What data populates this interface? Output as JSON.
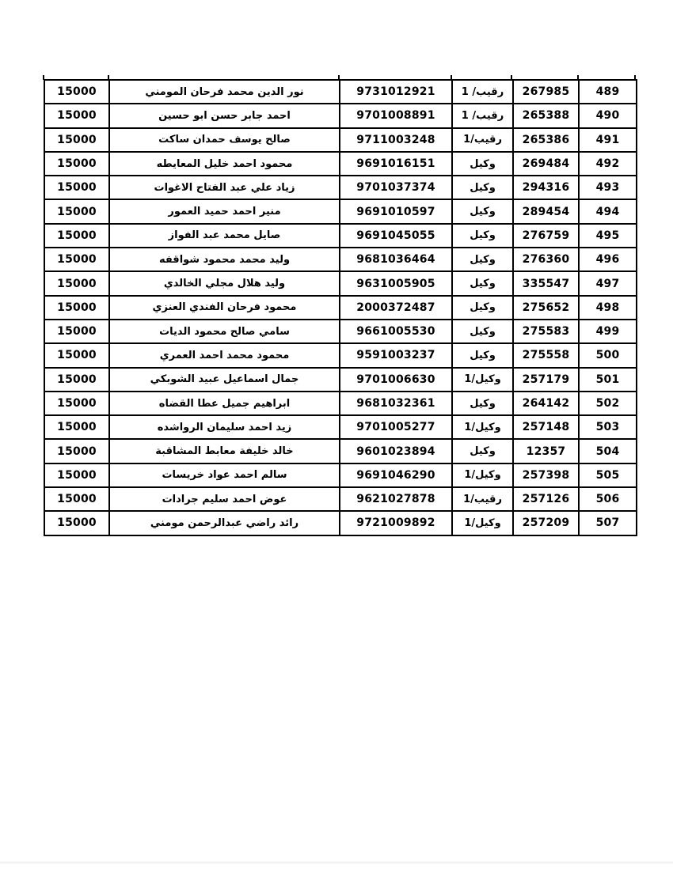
{
  "table": {
    "columns": [
      {
        "key": "serial",
        "name": "serial-number-cell",
        "class": "cell-num"
      },
      {
        "key": "number",
        "name": "record-number-cell",
        "class": "cell-num"
      },
      {
        "key": "rank",
        "name": "rank-cell",
        "class": "cell-rank"
      },
      {
        "key": "national_id",
        "name": "national-id-cell",
        "class": "cell-num"
      },
      {
        "key": "name",
        "name": "full-name-cell",
        "class": "cell-name"
      },
      {
        "key": "amount",
        "name": "amount-cell",
        "class": "cell-num"
      }
    ],
    "rows": [
      {
        "serial": "489",
        "number": "267985",
        "rank": "رقيب/ 1",
        "national_id": "9731012921",
        "name": "نور الدين محمد فرحان المومني",
        "amount": "15000"
      },
      {
        "serial": "490",
        "number": "265388",
        "rank": "رقيب/ 1",
        "national_id": "9701008891",
        "name": "احمد جابر حسن ابو حسين",
        "amount": "15000"
      },
      {
        "serial": "491",
        "number": "265386",
        "rank": "رقيب/1",
        "national_id": "9711003248",
        "name": "صالح يوسف حمدان ساكت",
        "amount": "15000"
      },
      {
        "serial": "492",
        "number": "269484",
        "rank": "وكيل",
        "national_id": "9691016151",
        "name": "محمود احمد خليل المعايطه",
        "amount": "15000"
      },
      {
        "serial": "493",
        "number": "294316",
        "rank": "وكيل",
        "national_id": "9701037374",
        "name": "زياد علي عبد الفتاح الاغوات",
        "amount": "15000"
      },
      {
        "serial": "494",
        "number": "289454",
        "rank": "وكيل",
        "national_id": "9691010597",
        "name": "منير احمد حميد العمور",
        "amount": "15000"
      },
      {
        "serial": "495",
        "number": "276759",
        "rank": "وكيل",
        "national_id": "9691045055",
        "name": "صايل محمد عبد الفواز",
        "amount": "15000"
      },
      {
        "serial": "496",
        "number": "276360",
        "rank": "وكيل",
        "national_id": "9681036464",
        "name": "وليد محمد محمود شواقفه",
        "amount": "15000"
      },
      {
        "serial": "497",
        "number": "335547",
        "rank": "وكيل",
        "national_id": "9631005905",
        "name": "وليد هلال مجلي الخالدي",
        "amount": "15000"
      },
      {
        "serial": "498",
        "number": "275652",
        "rank": "وكيل",
        "national_id": "2000372487",
        "name": "محمود فرحان الفندي العنزي",
        "amount": "15000"
      },
      {
        "serial": "499",
        "number": "275583",
        "rank": "وكيل",
        "national_id": "9661005530",
        "name": "سامي صالح محمود الديات",
        "amount": "15000"
      },
      {
        "serial": "500",
        "number": "275558",
        "rank": "وكيل",
        "national_id": "9591003237",
        "name": "محمود محمد احمد العمري",
        "amount": "15000"
      },
      {
        "serial": "501",
        "number": "257179",
        "rank": "وكيل/1",
        "national_id": "9701006630",
        "name": "جمال اسماعيل عبيد الشوبكي",
        "amount": "15000"
      },
      {
        "serial": "502",
        "number": "264142",
        "rank": "وكيل",
        "national_id": "9681032361",
        "name": "ابراهيم جميل عطا القضاه",
        "amount": "15000"
      },
      {
        "serial": "503",
        "number": "257148",
        "rank": "وكيل/1",
        "national_id": "9701005277",
        "name": "زيد احمد سليمان الرواشده",
        "amount": "15000"
      },
      {
        "serial": "504",
        "number": "12357",
        "rank": "وكيل",
        "national_id": "9601023894",
        "name": "خالد خليفة معابط المشاقبة",
        "amount": "15000"
      },
      {
        "serial": "505",
        "number": "257398",
        "rank": "وكيل/1",
        "national_id": "9691046290",
        "name": "سالم احمد عواد خريسات",
        "amount": "15000"
      },
      {
        "serial": "506",
        "number": "257126",
        "rank": "رقيب/1",
        "national_id": "9621027878",
        "name": "عوض احمد سليم جرادات",
        "amount": "15000"
      },
      {
        "serial": "507",
        "number": "257209",
        "rank": "وكيل/1",
        "national_id": "9721009892",
        "name": "رائد راضي عبدالرحمن مومني",
        "amount": "15000"
      }
    ],
    "border_color": "#000000"
  }
}
